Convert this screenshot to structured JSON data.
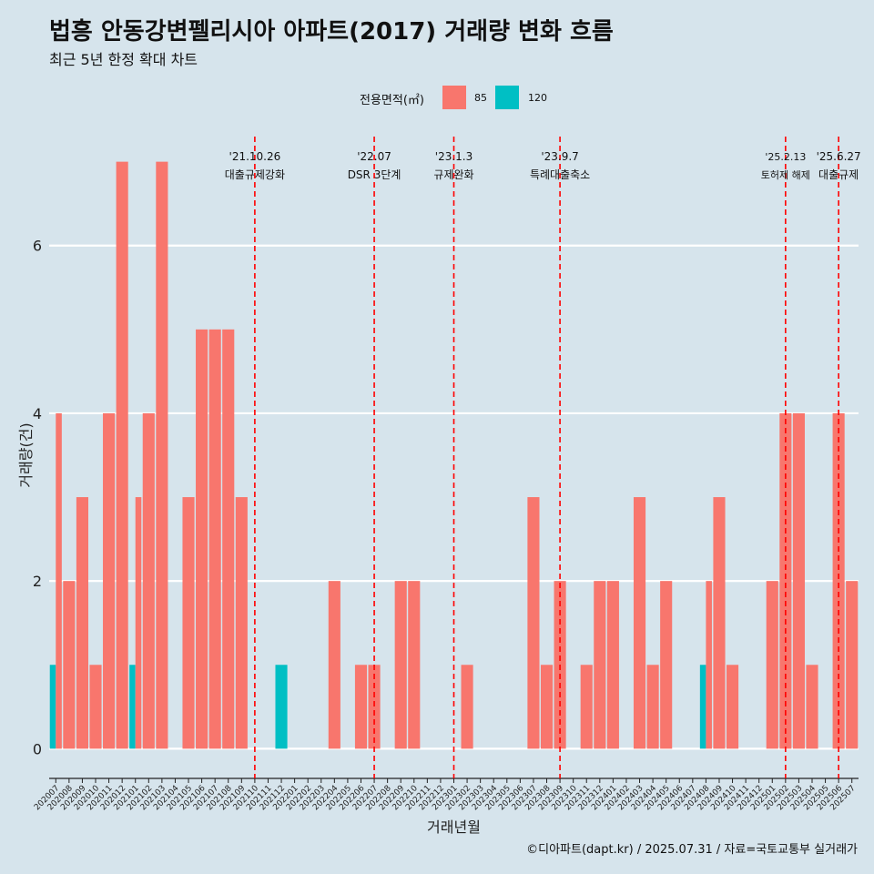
{
  "header": {
    "title": "법흥 안동강변펠리시아 아파트(2017) 거래량 변화 흐름",
    "subtitle": "최근 5년 한정 확대 차트"
  },
  "legend": {
    "title": "전용면적(㎡)",
    "items": [
      {
        "label": "85",
        "color": "#f8766d"
      },
      {
        "label": "120",
        "color": "#00bfc4"
      }
    ]
  },
  "caption": "©디아파트(dapt.kr) / 2025.07.31 / 자료=국토교통부 실거래가",
  "chart_data": {
    "type": "bar",
    "xlabel": "거래년월",
    "ylabel": "거래량(건)",
    "ylim": [
      -0.3,
      7.3
    ],
    "yticks": [
      0,
      2,
      4,
      6
    ],
    "grid": true,
    "legend_position": "top",
    "categories": [
      "202007",
      "202008",
      "202009",
      "202010",
      "202011",
      "202012",
      "202101",
      "202102",
      "202103",
      "202104",
      "202105",
      "202106",
      "202107",
      "202108",
      "202109",
      "202110",
      "202111",
      "202112",
      "202201",
      "202202",
      "202203",
      "202204",
      "202205",
      "202206",
      "202207",
      "202208",
      "202209",
      "202210",
      "202211",
      "202212",
      "202301",
      "202302",
      "202303",
      "202304",
      "202305",
      "202306",
      "202307",
      "202308",
      "202309",
      "202310",
      "202311",
      "202312",
      "202401",
      "202402",
      "202403",
      "202404",
      "202405",
      "202406",
      "202407",
      "202408",
      "202409",
      "202410",
      "202411",
      "202412",
      "202501",
      "202502",
      "202503",
      "202504",
      "202505",
      "202506",
      "202507"
    ],
    "series": [
      {
        "name": "85",
        "color": "#f8766d",
        "values": [
          4,
          2,
          3,
          1,
          4,
          7,
          3,
          4,
          7,
          0,
          3,
          5,
          5,
          5,
          3,
          0,
          0,
          0,
          0,
          0,
          0,
          2,
          0,
          1,
          1,
          0,
          2,
          2,
          0,
          0,
          0,
          1,
          0,
          0,
          0,
          0,
          3,
          1,
          2,
          0,
          1,
          2,
          2,
          0,
          3,
          1,
          2,
          0,
          0,
          2,
          3,
          1,
          0,
          0,
          2,
          4,
          4,
          1,
          0,
          4,
          2
        ]
      },
      {
        "name": "120",
        "color": "#00bfc4",
        "values": [
          1,
          0,
          0,
          0,
          0,
          0,
          1,
          0,
          0,
          0,
          0,
          0,
          0,
          0,
          0,
          0,
          0,
          1,
          0,
          0,
          0,
          0,
          0,
          0,
          0,
          0,
          0,
          0,
          0,
          0,
          0,
          0,
          0,
          0,
          0,
          0,
          0,
          0,
          0,
          0,
          0,
          0,
          0,
          0,
          0,
          0,
          0,
          0,
          0,
          1,
          0,
          0,
          0,
          0,
          0,
          0,
          0,
          0,
          0,
          0,
          0
        ]
      }
    ],
    "annotations": [
      {
        "category": "202110",
        "date": "'21.10.26",
        "label": "대출규제강화"
      },
      {
        "category": "202207",
        "date": "'22.07",
        "label": "DSR 3단계"
      },
      {
        "category": "202301",
        "date": "'23.1.3",
        "label": "규제완화"
      },
      {
        "category": "202309",
        "date": "'23.9.7",
        "label": "특례대출축소"
      },
      {
        "category": "202502",
        "date": "'25.2.13",
        "label": "토허제 해제"
      },
      {
        "category": "202506",
        "date": "'25.6.27",
        "label": "대출규제"
      }
    ],
    "annotation_color": "#ff0000"
  }
}
